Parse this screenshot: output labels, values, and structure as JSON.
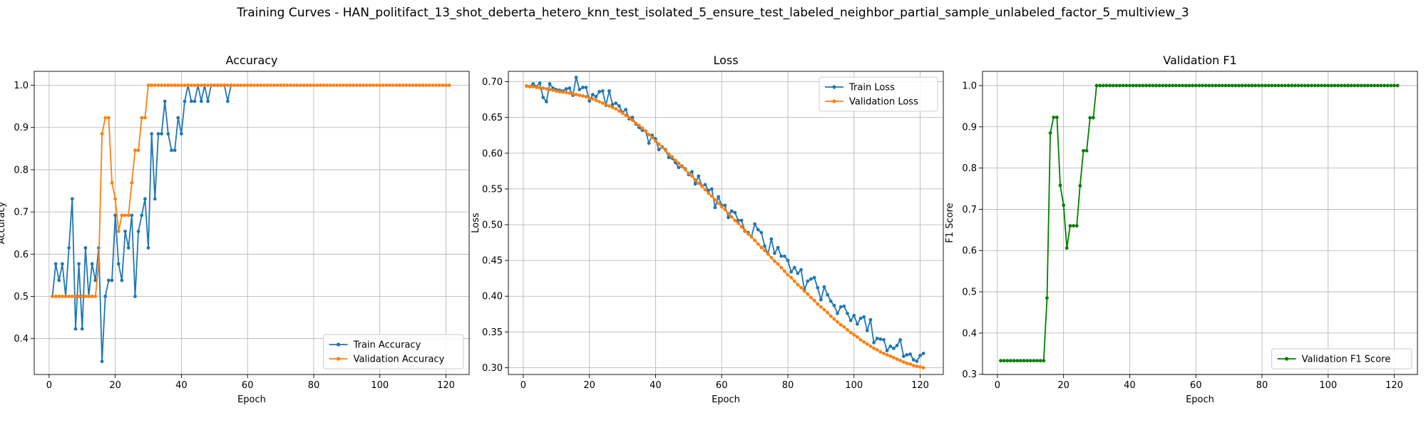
{
  "suptitle": "Training Curves - HAN_politifact_13_shot_deberta_hetero_knn_test_isolated_5_ensure_test_labeled_neighbor_partial_sample_unlabeled_factor_5_multiview_3",
  "colors": {
    "blue": "#1f77b4",
    "orange": "#ff7f0e",
    "green": "#008000",
    "grid": "#b0b0b0"
  },
  "chart_data": [
    {
      "type": "line",
      "title": "Accuracy",
      "xlabel": "Epoch",
      "ylabel": "Accuracy",
      "xlim": [
        -4.5,
        127
      ],
      "ylim": [
        0.315,
        1.033
      ],
      "xticks": [
        0,
        20,
        40,
        60,
        80,
        100,
        120
      ],
      "yticks": [
        0.4,
        0.5,
        0.6,
        0.7,
        0.8,
        0.9,
        1.0
      ],
      "ytick_labels": [
        "0.4",
        "0.5",
        "0.6",
        "0.7",
        "0.8",
        "0.9",
        "1.0"
      ],
      "grid": true,
      "legend_loc": "lower-right",
      "series": [
        {
          "name": "Train Accuracy",
          "color": "#1f77b4",
          "x": [
            1,
            2,
            3,
            4,
            5,
            6,
            7,
            8,
            9,
            10,
            11,
            12,
            13,
            14,
            15,
            16,
            17,
            18,
            19,
            20,
            21,
            22,
            23,
            24,
            25,
            26,
            27,
            28,
            29,
            30,
            31,
            32,
            33,
            34,
            35,
            36,
            37,
            38,
            39,
            40,
            41,
            42,
            43,
            44,
            45,
            46,
            47,
            48,
            49,
            50,
            51,
            52,
            53,
            54,
            55
          ],
          "y": [
            0.5,
            0.577,
            0.538,
            0.577,
            0.5,
            0.615,
            0.731,
            0.423,
            0.577,
            0.423,
            0.615,
            0.5,
            0.577,
            0.538,
            0.615,
            0.346,
            0.5,
            0.538,
            0.538,
            0.692,
            0.577,
            0.538,
            0.654,
            0.615,
            0.692,
            0.5,
            0.654,
            0.692,
            0.731,
            0.615,
            0.885,
            0.731,
            0.885,
            0.885,
            0.962,
            0.885,
            0.846,
            0.846,
            0.923,
            0.885,
            0.962,
            1.0,
            0.962,
            0.962,
            1.0,
            0.962,
            1.0,
            0.962,
            1.0,
            1.0,
            1.0,
            1.0,
            1.0,
            0.962,
            1.0
          ]
        },
        {
          "name": "Validation Accuracy",
          "color": "#ff7f0e",
          "x": [
            1,
            2,
            3,
            4,
            5,
            6,
            7,
            8,
            9,
            10,
            11,
            12,
            13,
            14,
            15,
            16,
            17,
            18,
            19,
            20,
            21,
            22,
            23,
            24,
            25,
            26,
            27,
            28,
            29,
            30
          ],
          "y": [
            0.5,
            0.5,
            0.5,
            0.5,
            0.5,
            0.5,
            0.5,
            0.5,
            0.5,
            0.5,
            0.5,
            0.5,
            0.5,
            0.5,
            0.577,
            0.885,
            0.923,
            0.923,
            0.769,
            0.731,
            0.654,
            0.692,
            0.692,
            0.692,
            0.769,
            0.846,
            0.846,
            0.923,
            0.923,
            1.0
          ],
          "y_after": 1.0
        }
      ]
    },
    {
      "type": "line",
      "title": "Loss",
      "xlabel": "Epoch",
      "ylabel": "Loss",
      "xlim": [
        -4.5,
        127
      ],
      "ylim": [
        0.2905,
        0.7145
      ],
      "xticks": [
        0,
        20,
        40,
        60,
        80,
        100,
        120
      ],
      "yticks": [
        0.3,
        0.35,
        0.4,
        0.45,
        0.5,
        0.55,
        0.6,
        0.65,
        0.7
      ],
      "ytick_labels": [
        "0.30",
        "0.35",
        "0.40",
        "0.45",
        "0.50",
        "0.55",
        "0.60",
        "0.65",
        "0.70"
      ],
      "grid": true,
      "legend_loc": "upper-right",
      "series": [
        {
          "name": "Train Loss",
          "color": "#1f77b4",
          "x": [
            1,
            2,
            3,
            4,
            5,
            6,
            7,
            8,
            9,
            10,
            11,
            12,
            13,
            14,
            15,
            16,
            17,
            18,
            19,
            20,
            21,
            22,
            23,
            24,
            25,
            26,
            27,
            28,
            29,
            30,
            31,
            32,
            33,
            34,
            35,
            36,
            37,
            38,
            39,
            40,
            41,
            42,
            43,
            44,
            45,
            46,
            47,
            48,
            49,
            50,
            51,
            52,
            53,
            54,
            55,
            56,
            57,
            58,
            59,
            60,
            61,
            62,
            63,
            64,
            65,
            66,
            67,
            68,
            69,
            70,
            71,
            72,
            73,
            74,
            75,
            76,
            77,
            78,
            79,
            80,
            81,
            82,
            83,
            84,
            85,
            86,
            87,
            88,
            89,
            90,
            91,
            92,
            93,
            94,
            95,
            96,
            97,
            98,
            99,
            100,
            101,
            102,
            103,
            104,
            105,
            106,
            107,
            108,
            109,
            110,
            111,
            112,
            113,
            114,
            115,
            116,
            117,
            118,
            119,
            120,
            121
          ],
          "y": [
            0.694,
            0.693,
            0.697,
            0.693,
            0.698,
            0.678,
            0.672,
            0.697,
            0.691,
            0.689,
            0.688,
            0.687,
            0.69,
            0.691,
            0.681,
            0.706,
            0.689,
            0.692,
            0.692,
            0.673,
            0.682,
            0.679,
            0.686,
            0.687,
            0.667,
            0.687,
            0.668,
            0.67,
            0.666,
            0.657,
            0.661,
            0.648,
            0.65,
            0.641,
            0.636,
            0.632,
            0.631,
            0.614,
            0.625,
            0.62,
            0.605,
            0.609,
            0.605,
            0.594,
            0.593,
            0.587,
            0.58,
            0.582,
            0.578,
            0.57,
            0.574,
            0.557,
            0.568,
            0.554,
            0.556,
            0.548,
            0.55,
            0.524,
            0.539,
            0.527,
            0.527,
            0.51,
            0.519,
            0.517,
            0.506,
            0.506,
            0.491,
            0.489,
            0.483,
            0.501,
            0.493,
            0.489,
            0.47,
            0.459,
            0.48,
            0.46,
            0.468,
            0.456,
            0.456,
            0.45,
            0.434,
            0.44,
            0.432,
            0.437,
            0.409,
            0.421,
            0.424,
            0.426,
            0.412,
            0.395,
            0.413,
            0.402,
            0.393,
            0.387,
            0.376,
            0.385,
            0.386,
            0.376,
            0.366,
            0.373,
            0.361,
            0.369,
            0.371,
            0.352,
            0.367,
            0.335,
            0.341,
            0.34,
            0.339,
            0.324,
            0.33,
            0.327,
            0.331,
            0.339,
            0.316,
            0.318,
            0.319,
            0.311,
            0.309,
            0.317,
            0.32
          ]
        },
        {
          "name": "Validation Loss",
          "color": "#ff7f0e",
          "x": [
            1,
            2,
            3,
            4,
            5,
            6,
            7,
            8,
            9,
            10,
            11,
            12,
            13,
            14,
            15,
            16,
            17,
            18,
            19,
            20,
            21,
            22,
            23,
            24,
            25,
            26,
            27,
            28,
            29,
            30,
            31,
            32,
            33,
            34,
            35,
            36,
            37,
            38,
            39,
            40,
            41,
            42,
            43,
            44,
            45,
            46,
            47,
            48,
            49,
            50,
            51,
            52,
            53,
            54,
            55,
            56,
            57,
            58,
            59,
            60,
            61,
            62,
            63,
            64,
            65,
            66,
            67,
            68,
            69,
            70,
            71,
            72,
            73,
            74,
            75,
            76,
            77,
            78,
            79,
            80,
            81,
            82,
            83,
            84,
            85,
            86,
            87,
            88,
            89,
            90,
            91,
            92,
            93,
            94,
            95,
            96,
            97,
            98,
            99,
            100,
            101,
            102,
            103,
            104,
            105,
            106,
            107,
            108,
            109,
            110,
            111,
            112,
            113,
            114,
            115,
            116,
            117,
            118,
            119,
            120,
            121
          ],
          "y": [
            0.694,
            0.6935,
            0.693,
            0.692,
            0.6915,
            0.691,
            0.69,
            0.689,
            0.688,
            0.687,
            0.686,
            0.6855,
            0.685,
            0.684,
            0.683,
            0.682,
            0.681,
            0.68,
            0.679,
            0.677,
            0.676,
            0.674,
            0.672,
            0.67,
            0.668,
            0.666,
            0.664,
            0.662,
            0.659,
            0.656,
            0.653,
            0.65,
            0.646,
            0.642,
            0.639,
            0.635,
            0.631,
            0.626,
            0.622,
            0.617,
            0.613,
            0.608,
            0.604,
            0.599,
            0.595,
            0.59,
            0.586,
            0.581,
            0.577,
            0.572,
            0.568,
            0.563,
            0.558,
            0.554,
            0.549,
            0.544,
            0.54,
            0.535,
            0.53,
            0.525,
            0.521,
            0.516,
            0.511,
            0.506,
            0.502,
            0.497,
            0.492,
            0.487,
            0.483,
            0.478,
            0.473,
            0.468,
            0.464,
            0.459,
            0.454,
            0.449,
            0.445,
            0.44,
            0.435,
            0.43,
            0.426,
            0.421,
            0.416,
            0.412,
            0.407,
            0.403,
            0.398,
            0.394,
            0.389,
            0.385,
            0.381,
            0.377,
            0.372,
            0.368,
            0.364,
            0.36,
            0.357,
            0.353,
            0.349,
            0.346,
            0.343,
            0.339,
            0.336,
            0.333,
            0.33,
            0.327,
            0.325,
            0.322,
            0.32,
            0.318,
            0.316,
            0.314,
            0.312,
            0.31,
            0.308,
            0.306,
            0.305,
            0.303,
            0.302,
            0.301,
            0.3
          ]
        }
      ]
    },
    {
      "type": "line",
      "title": "Validation F1",
      "xlabel": "Epoch",
      "ylabel": "F1 Score",
      "xlim": [
        -4.5,
        127
      ],
      "ylim": [
        0.2995,
        1.0345
      ],
      "xticks": [
        0,
        20,
        40,
        60,
        80,
        100,
        120
      ],
      "yticks": [
        0.3,
        0.4,
        0.5,
        0.6,
        0.7,
        0.8,
        0.9,
        1.0
      ],
      "ytick_labels": [
        "0.3",
        "0.4",
        "0.5",
        "0.6",
        "0.7",
        "0.8",
        "0.9",
        "1.0"
      ],
      "grid": true,
      "legend_loc": "lower-right",
      "series": [
        {
          "name": "Validation F1 Score",
          "color": "#008000",
          "x": [
            1,
            2,
            3,
            4,
            5,
            6,
            7,
            8,
            9,
            10,
            11,
            12,
            13,
            14,
            15,
            16,
            17,
            18,
            19,
            20,
            21,
            22,
            23,
            24,
            25,
            26,
            27,
            28,
            29,
            30
          ],
          "y": [
            0.333,
            0.333,
            0.333,
            0.333,
            0.333,
            0.333,
            0.333,
            0.333,
            0.333,
            0.333,
            0.333,
            0.333,
            0.333,
            0.333,
            0.485,
            0.885,
            0.923,
            0.923,
            0.758,
            0.71,
            0.606,
            0.66,
            0.66,
            0.66,
            0.757,
            0.842,
            0.842,
            0.922,
            0.922,
            1.0
          ],
          "y_after": 1.0
        }
      ]
    }
  ]
}
